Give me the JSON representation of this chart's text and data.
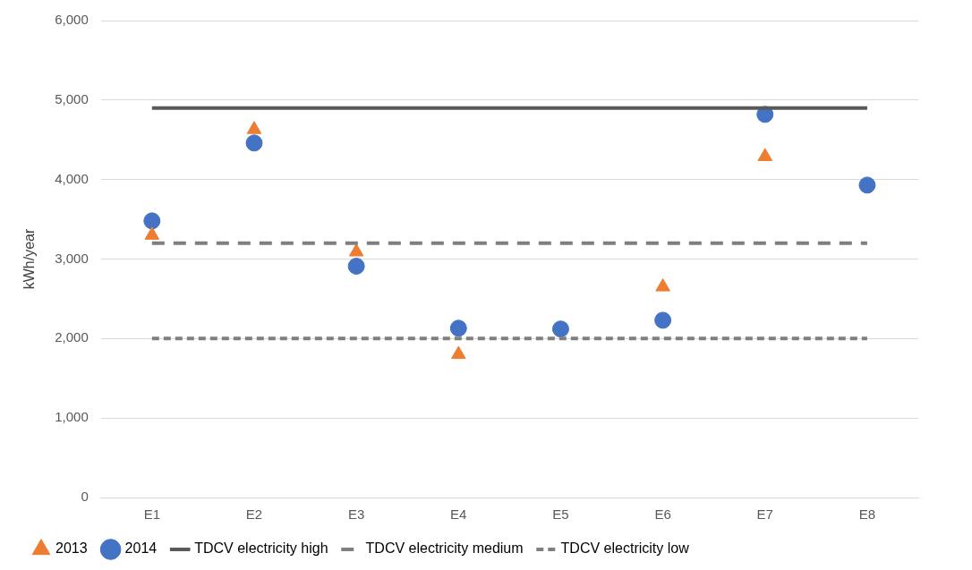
{
  "chart_data": {
    "type": "scatter",
    "ylabel": "kWh/year",
    "categories": [
      "E1",
      "E2",
      "E3",
      "E4",
      "E5",
      "E6",
      "E7",
      "E8"
    ],
    "ylim": [
      0,
      6000
    ],
    "yticks": [
      {
        "value": 0,
        "label": "0"
      },
      {
        "value": 1000,
        "label": "1,000"
      },
      {
        "value": 2000,
        "label": "2,000"
      },
      {
        "value": 3000,
        "label": "3,000"
      },
      {
        "value": 4000,
        "label": "4,000"
      },
      {
        "value": 5000,
        "label": "5,000"
      },
      {
        "value": 6000,
        "label": "6,000"
      }
    ],
    "grid": "y",
    "legend": "bottom",
    "series": [
      {
        "name": "2013",
        "type": "scatter",
        "marker": "triangle",
        "color": "#ed7d31",
        "values": [
          3300,
          4630,
          3090,
          1800,
          null,
          2650,
          4290,
          null
        ]
      },
      {
        "name": "2014",
        "type": "scatter",
        "marker": "circle",
        "color": "#4472c4",
        "values": [
          3480,
          4460,
          2910,
          2130,
          2120,
          2230,
          4820,
          3930
        ]
      },
      {
        "name": "TDCV electricity high",
        "type": "line",
        "line_style": "solid",
        "marker": "none",
        "color": "#595959",
        "values": [
          4900,
          4900,
          4900,
          4900,
          4900,
          4900,
          4900,
          4900
        ]
      },
      {
        "name": "TDCV electricity medium",
        "type": "line",
        "line_style": "dashed",
        "marker": "none",
        "color": "#7f7f7f",
        "values": [
          3200,
          3200,
          3200,
          3200,
          3200,
          3200,
          3200,
          3200
        ]
      },
      {
        "name": "TDCV electricity low",
        "type": "line",
        "line_style": "dotted",
        "marker": "none",
        "color": "#7f7f7f",
        "values": [
          2000,
          2000,
          2000,
          2000,
          2000,
          2000,
          2000,
          2000
        ]
      }
    ]
  }
}
